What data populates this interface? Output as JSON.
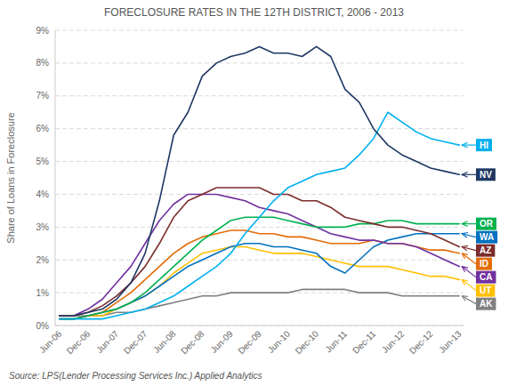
{
  "chart_data": {
    "type": "line",
    "title": "FORECLOSURE RATES IN THE 12TH DISTRICT, 2006 - 2013",
    "y_label": "Share of Loans in Foreclosure",
    "source": "Source: LPS(Lender Processing Services Inc.) Applied Analytics",
    "categories": [
      "Jun-06",
      null,
      "Dec-06",
      null,
      "Jun-07",
      null,
      "Dec-07",
      null,
      "Jun-08",
      null,
      "Dec-08",
      null,
      "Jun-09",
      null,
      "Dec-09",
      null,
      "Jun-10",
      null,
      "Dec-10",
      null,
      "Jun-11",
      null,
      "Dec-11",
      null,
      "Jun-12",
      null,
      "Dec-12",
      null,
      "Jun-13"
    ],
    "ylim": [
      0,
      0.09
    ],
    "yticks": [
      {
        "value": 0.0,
        "label": "0%"
      },
      {
        "value": 0.01,
        "label": "1%"
      },
      {
        "value": 0.02,
        "label": "2%"
      },
      {
        "value": 0.03,
        "label": "3%"
      },
      {
        "value": 0.04,
        "label": "4%"
      },
      {
        "value": 0.05,
        "label": "5%"
      },
      {
        "value": 0.06,
        "label": "6%"
      },
      {
        "value": 0.07,
        "label": "7%"
      },
      {
        "value": 0.08,
        "label": "8%"
      },
      {
        "value": 0.09,
        "label": "9%"
      }
    ],
    "grid": true,
    "series": [
      {
        "name": "AK",
        "color": "#808080",
        "values": [
          0.003,
          0.003,
          0.003,
          0.003,
          0.004,
          0.004,
          0.005,
          0.006,
          0.007,
          0.008,
          0.009,
          0.009,
          0.01,
          0.01,
          0.01,
          0.01,
          0.01,
          0.011,
          0.011,
          0.011,
          0.011,
          0.01,
          0.01,
          0.01,
          0.009,
          0.009,
          0.009,
          0.009,
          0.009
        ]
      },
      {
        "name": "UT",
        "color": "#ffc000",
        "values": [
          0.002,
          0.002,
          0.003,
          0.003,
          0.005,
          0.007,
          0.009,
          0.012,
          0.016,
          0.019,
          0.022,
          0.023,
          0.024,
          0.024,
          0.023,
          0.022,
          0.022,
          0.022,
          0.021,
          0.02,
          0.019,
          0.018,
          0.018,
          0.018,
          0.017,
          0.016,
          0.015,
          0.015,
          0.014
        ]
      },
      {
        "name": "WA",
        "color": "#0070c0",
        "values": [
          0.002,
          0.002,
          0.003,
          0.004,
          0.005,
          0.007,
          0.009,
          0.012,
          0.015,
          0.018,
          0.02,
          0.022,
          0.024,
          0.025,
          0.025,
          0.024,
          0.024,
          0.023,
          0.022,
          0.018,
          0.016,
          0.02,
          0.024,
          0.026,
          0.027,
          0.028,
          0.028,
          0.028,
          0.028
        ]
      },
      {
        "name": "ID",
        "color": "#e36c09",
        "values": [
          0.002,
          0.002,
          0.003,
          0.004,
          0.007,
          0.01,
          0.014,
          0.018,
          0.022,
          0.025,
          0.027,
          0.028,
          0.029,
          0.029,
          0.028,
          0.028,
          0.027,
          0.027,
          0.026,
          0.025,
          0.025,
          0.025,
          0.026,
          0.025,
          0.025,
          0.024,
          0.023,
          0.023,
          0.022
        ]
      },
      {
        "name": "CA",
        "color": "#7030a0",
        "values": [
          0.003,
          0.003,
          0.005,
          0.008,
          0.013,
          0.018,
          0.025,
          0.032,
          0.037,
          0.04,
          0.04,
          0.04,
          0.039,
          0.038,
          0.036,
          0.035,
          0.034,
          0.032,
          0.03,
          0.028,
          0.027,
          0.026,
          0.026,
          0.025,
          0.025,
          0.024,
          0.022,
          0.02,
          0.018
        ]
      },
      {
        "name": "OR",
        "color": "#00b050",
        "values": [
          0.002,
          0.002,
          0.003,
          0.004,
          0.005,
          0.007,
          0.01,
          0.014,
          0.018,
          0.022,
          0.026,
          0.029,
          0.032,
          0.033,
          0.033,
          0.033,
          0.032,
          0.031,
          0.03,
          0.03,
          0.03,
          0.031,
          0.031,
          0.032,
          0.032,
          0.031,
          0.031,
          0.031,
          0.031
        ]
      },
      {
        "name": "AZ",
        "color": "#7b2c2c",
        "values": [
          0.003,
          0.003,
          0.004,
          0.006,
          0.009,
          0.013,
          0.018,
          0.025,
          0.033,
          0.038,
          0.04,
          0.042,
          0.042,
          0.042,
          0.042,
          0.04,
          0.04,
          0.038,
          0.038,
          0.036,
          0.033,
          0.032,
          0.031,
          0.03,
          0.03,
          0.029,
          0.028,
          0.026,
          0.024
        ]
      },
      {
        "name": "HI",
        "color": "#00b0f0",
        "values": [
          0.002,
          0.002,
          0.002,
          0.002,
          0.003,
          0.004,
          0.005,
          0.007,
          0.009,
          0.012,
          0.015,
          0.018,
          0.022,
          0.028,
          0.033,
          0.038,
          0.042,
          0.044,
          0.046,
          0.047,
          0.048,
          0.052,
          0.057,
          0.065,
          0.062,
          0.059,
          0.057,
          0.056,
          0.055
        ]
      },
      {
        "name": "NV",
        "color": "#1f3864",
        "values": [
          0.003,
          0.003,
          0.004,
          0.005,
          0.008,
          0.013,
          0.022,
          0.038,
          0.058,
          0.065,
          0.076,
          0.08,
          0.082,
          0.083,
          0.085,
          0.083,
          0.083,
          0.082,
          0.085,
          0.082,
          0.072,
          0.068,
          0.06,
          0.055,
          0.052,
          0.05,
          0.048,
          0.047,
          0.046
        ]
      }
    ]
  }
}
